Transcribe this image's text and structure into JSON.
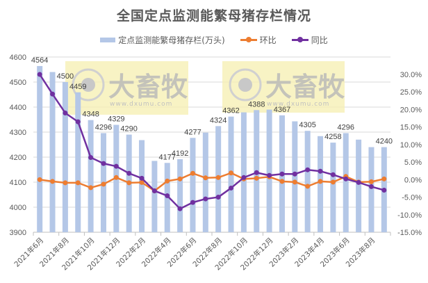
{
  "chart_data": {
    "type": "bar+line",
    "title": "全国定点监测能繁母猪存栏情况",
    "categories": [
      "2021年6月",
      "2021年7月",
      "2021年8月",
      "2021年9月",
      "2021年10月",
      "2021年11月",
      "2021年12月",
      "2022年1月",
      "2022年2月",
      "2022年3月",
      "2022年4月",
      "2022年5月",
      "2022年6月",
      "2022年7月",
      "2022年8月",
      "2022年9月",
      "2022年10月",
      "2022年11月",
      "2022年12月",
      "2023年1月",
      "2023年2月",
      "2023年3月",
      "2023年4月",
      "2023年5月",
      "2023年6月",
      "2023年7月",
      "2023年8月",
      "2023年9月"
    ],
    "x_tick_labels": [
      "2021年6月",
      "2021年8月",
      "2021年10月",
      "2021年12月",
      "2022年2月",
      "2022年4月",
      "2022年6月",
      "2022年8月",
      "2022年10月",
      "2022年12月",
      "2023年2月",
      "2023年4月",
      "2023年6月",
      "2023年8月"
    ],
    "series": [
      {
        "name": "定点监测能繁母猪存栏(万头)",
        "type": "bar",
        "axis": "left",
        "color": "#b4c7e7",
        "values": [
          4564,
          4540,
          4500,
          4459,
          4348,
          4296,
          4329,
          4290,
          4268,
          4185,
          4177,
          4192,
          4277,
          4298,
          4324,
          4362,
          4379,
          4388,
          4390,
          4367,
          4343,
          4305,
          4284,
          4258,
          4296,
          4270,
          4240,
          4240
        ]
      },
      {
        "name": "环比",
        "type": "line",
        "axis": "right",
        "color": "#ed7d31",
        "values": [
          0.0,
          -0.5,
          -0.9,
          -0.9,
          -2.3,
          -1.3,
          0.6,
          -0.9,
          -0.8,
          -3.2,
          -0.4,
          0.2,
          1.8,
          0.5,
          0.6,
          1.9,
          0.2,
          0.4,
          0.8,
          -0.5,
          -0.7,
          -1.9,
          -0.5,
          -0.7,
          0.9,
          -0.7,
          -0.6,
          0.2
        ]
      },
      {
        "name": "同比",
        "type": "line",
        "axis": "right",
        "color": "#7030a0",
        "values": [
          30.0,
          24.4,
          19.0,
          16.5,
          6.3,
          4.6,
          3.8,
          1.8,
          0.4,
          -3.2,
          -4.6,
          -8.3,
          -6.5,
          -5.5,
          -5.0,
          -2.4,
          0.6,
          2.0,
          1.2,
          1.6,
          1.6,
          2.8,
          2.4,
          1.4,
          0.2,
          -0.8,
          -2.0,
          -3.0
        ]
      }
    ],
    "data_labels": [
      {
        "index": 0,
        "text": "4564"
      },
      {
        "index": 2,
        "text": "4500"
      },
      {
        "index": 3,
        "text": "4459"
      },
      {
        "index": 4,
        "text": "4348"
      },
      {
        "index": 5,
        "text": "4296"
      },
      {
        "index": 6,
        "text": "4329"
      },
      {
        "index": 7,
        "text": "4290"
      },
      {
        "index": 10,
        "text": "4177"
      },
      {
        "index": 11,
        "text": "4192"
      },
      {
        "index": 12,
        "text": "4277"
      },
      {
        "index": 14,
        "text": "4324"
      },
      {
        "index": 15,
        "text": "4362"
      },
      {
        "index": 17,
        "text": "4388"
      },
      {
        "index": 19,
        "text": "4367"
      },
      {
        "index": 21,
        "text": "4305"
      },
      {
        "index": 23,
        "text": "4258"
      },
      {
        "index": 24,
        "text": "4296"
      },
      {
        "index": 27,
        "text": "4240"
      }
    ],
    "left_axis": {
      "ylim": [
        3900,
        4600
      ],
      "ticks": [
        "4600",
        "4500",
        "4400",
        "4300",
        "4200",
        "4100",
        "4000",
        "3900"
      ]
    },
    "right_axis": {
      "ylim": [
        -15,
        30
      ],
      "ticks": [
        "30.0%",
        "25.0%",
        "20.0%",
        "15.0%",
        "10.0%",
        "5.0%",
        "0.0%",
        "-5.0%",
        "-10.0%",
        "-15.0%"
      ]
    },
    "legend_position": "top",
    "grid": true
  },
  "legend": {
    "bar": "定点监测能繁母猪存栏(万头)",
    "mom": "环比",
    "yoy": "同比"
  },
  "watermark": {
    "cn": "大畜牧",
    "url": "www.dxumu.com"
  }
}
